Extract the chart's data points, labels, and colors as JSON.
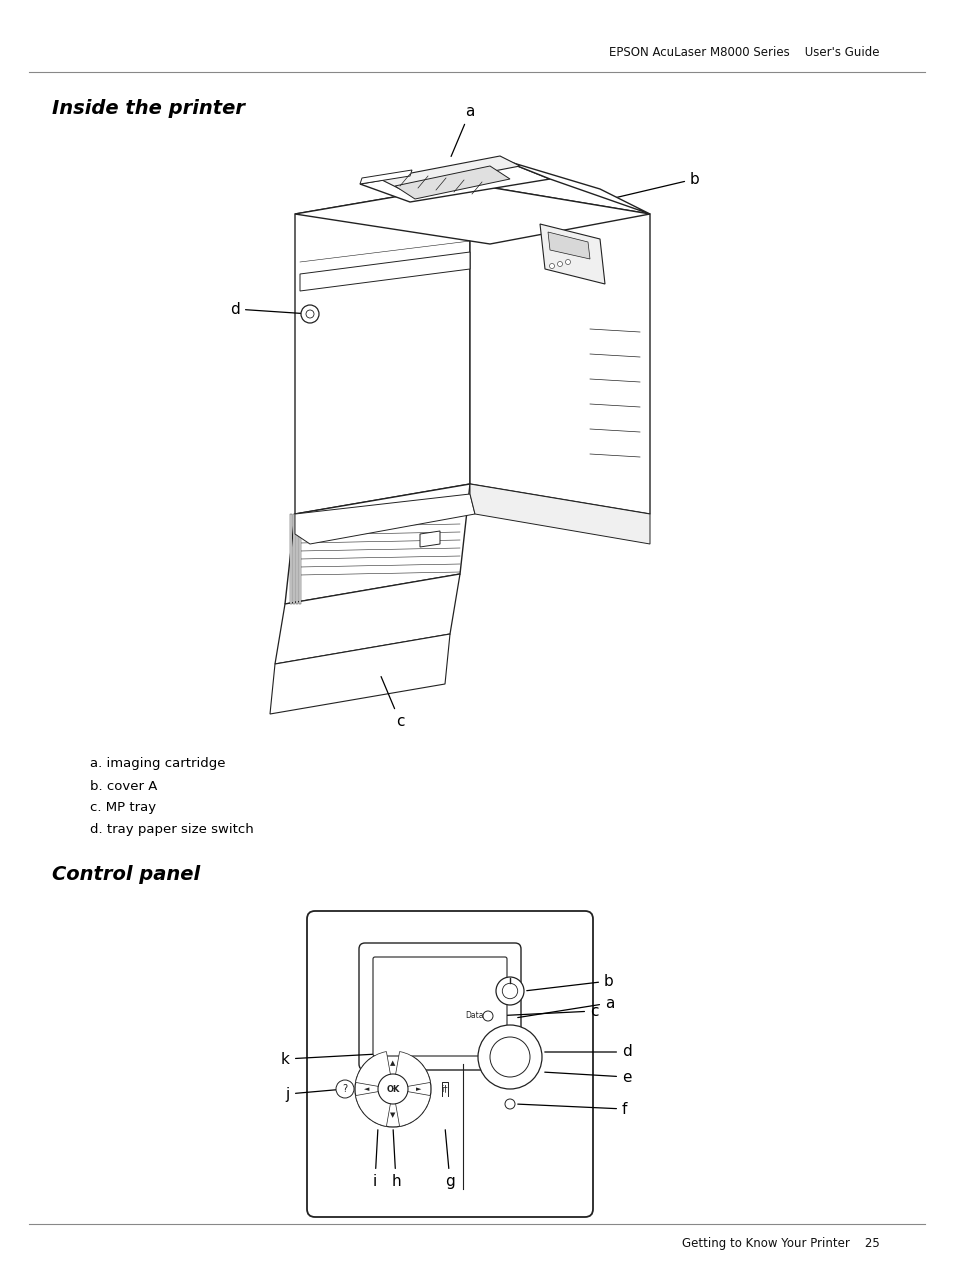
{
  "header_text": "EPSON AcuLaser M8000 Series    User's Guide",
  "footer_text": "Getting to Know Your Printer    25",
  "section1_title": "Inside the printer",
  "section2_title": "Control panel",
  "section1_descriptions": [
    "a. imaging cartridge",
    "b. cover A",
    "c. MP tray",
    "d. tray paper size switch"
  ],
  "bg_color": "#ffffff",
  "line_color": "#222222",
  "light_gray": "#dddddd",
  "mid_gray": "#aaaaaa",
  "dark_gray": "#555555"
}
